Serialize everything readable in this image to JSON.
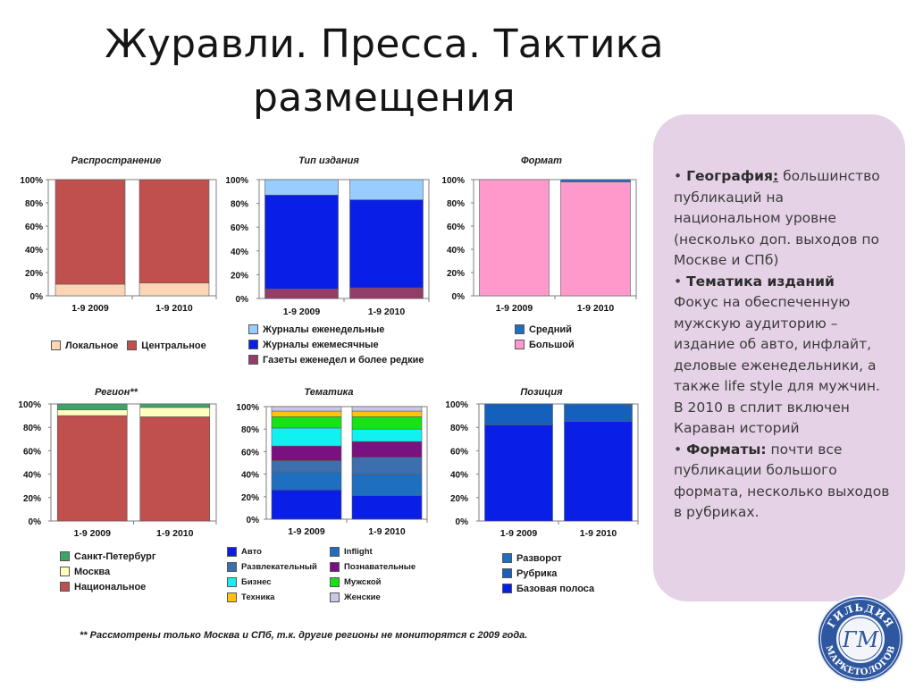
{
  "slide": {
    "title_lines": [
      "Журавли. Пресса. Тактика",
      "размещения"
    ],
    "footnote": "** Рассмотрены только Москва и СПб, т.к. другие регионы не мониторятся с 2009 года."
  },
  "side_panel": {
    "background": "#e5d2e6",
    "blocks": [
      {
        "bullet": "•",
        "heading": "География",
        "sep": ":",
        "text": " большинство публикаций на национальном уровне (несколько доп. выходов по Москве и СПб)"
      },
      {
        "bullet": "•",
        "heading": "Тематика изданий",
        "sep": "",
        "text": " Фокус на обеспеченную мужскую аудиторию – издание об авто, инфлайт, деловые еженедельники, а также life style для мужчин. В 2010 в сплит включен Караван историй"
      },
      {
        "bullet": "•",
        "heading": "Форматы",
        "sep": ":",
        "text": "  почти все публикации большого формата, несколько выходов в рубриках."
      }
    ]
  },
  "logo": {
    "icon": "guild-seal-logo",
    "text": "ГИЛЬДИЯ МАРКЕТОЛОГОВ",
    "letters": "ГМ"
  },
  "chart_data": [
    {
      "id": "rasprostranenie",
      "type": "bar",
      "stacked": "percent",
      "title": "Распространение",
      "categories": [
        "1-9 2009",
        "1-9 2010"
      ],
      "yticks": [
        "100%",
        "80%",
        "60%",
        "40%",
        "20%",
        "0%"
      ],
      "ylim": [
        0,
        100
      ],
      "series": [
        {
          "name": "Локальное",
          "color": "#fbd5b5",
          "values": [
            10,
            11
          ]
        },
        {
          "name": "Центральное",
          "color": "#c0504d",
          "values": [
            90,
            89
          ]
        }
      ],
      "legend_position": "bottom",
      "legend_order": [
        "Локальное",
        "Центральное"
      ]
    },
    {
      "id": "tip-izdaniya",
      "type": "bar",
      "stacked": "percent",
      "title": "Тип издания",
      "categories": [
        "1-9 2009",
        "1-9 2010"
      ],
      "yticks": [
        "100%",
        "80%",
        "60%",
        "40%",
        "20%",
        "0%"
      ],
      "ylim": [
        0,
        100
      ],
      "series": [
        {
          "name": "Газеты еженедел и более редкие",
          "color": "#943c6a",
          "values": [
            8,
            9
          ]
        },
        {
          "name": "Журналы ежемесячные",
          "color": "#0a1fe6",
          "values": [
            79,
            74
          ]
        },
        {
          "name": "Журналы еженедельные",
          "color": "#99ccff",
          "values": [
            13,
            17
          ]
        }
      ],
      "legend_position": "bottom",
      "legend_order": [
        "Журналы еженедельные",
        "Журналы ежемесячные",
        "Газеты еженедел и более редкие"
      ]
    },
    {
      "id": "format",
      "type": "bar",
      "stacked": "percent",
      "title": "Формат",
      "categories": [
        "1-9 2009",
        "1-9 2010"
      ],
      "yticks": [
        "100%",
        "80%",
        "60%",
        "40%",
        "20%",
        "0%"
      ],
      "ylim": [
        0,
        100
      ],
      "series": [
        {
          "name": "Большой",
          "color": "#ff99cc",
          "values": [
            100,
            98
          ]
        },
        {
          "name": "Средний",
          "color": "#1f6fc0",
          "values": [
            0,
            2
          ]
        }
      ],
      "legend_position": "bottom",
      "legend_order": [
        "Средний",
        "Большой"
      ]
    },
    {
      "id": "region",
      "type": "bar",
      "stacked": "percent",
      "title": "Регион**",
      "categories": [
        "1-9 2009",
        "1-9 2010"
      ],
      "yticks": [
        "100%",
        "80%",
        "60%",
        "40%",
        "20%",
        "0%"
      ],
      "ylim": [
        0,
        100
      ],
      "series": [
        {
          "name": "Национальное",
          "color": "#c0504d",
          "values": [
            90,
            89
          ]
        },
        {
          "name": "Москва",
          "color": "#ffffc0",
          "values": [
            5,
            8
          ]
        },
        {
          "name": "Санкт-Петербург",
          "color": "#3ea568",
          "values": [
            5,
            3
          ]
        }
      ],
      "legend_position": "bottom",
      "legend_order": [
        "Санкт-Петербург",
        "Москва",
        "Национальное"
      ]
    },
    {
      "id": "tematika",
      "type": "bar",
      "stacked": "percent",
      "title": "Тематика",
      "categories": [
        "1-9 2009",
        "1-9 2010"
      ],
      "yticks": [
        "100%",
        "80%",
        "60%",
        "40%",
        "20%",
        "0%"
      ],
      "ylim": [
        0,
        100
      ],
      "series": [
        {
          "name": "Авто",
          "color": "#0a1fe6",
          "values": [
            26,
            21
          ]
        },
        {
          "name": "Inflight",
          "color": "#1f6fc0",
          "values": [
            16,
            19
          ]
        },
        {
          "name": "Развлекательный",
          "color": "#3d6fae",
          "values": [
            10,
            15
          ]
        },
        {
          "name": "Познавательные",
          "color": "#7a1180",
          "values": [
            13,
            14
          ]
        },
        {
          "name": "Бизнес",
          "color": "#12f1f1",
          "values": [
            16,
            11
          ]
        },
        {
          "name": "Мужской",
          "color": "#16e216",
          "values": [
            10,
            11
          ]
        },
        {
          "name": "Техника",
          "color": "#ffc20e",
          "values": [
            5,
            5
          ]
        },
        {
          "name": "Женские",
          "color": "#c8c8e8",
          "values": [
            4,
            4
          ]
        }
      ],
      "legend_position": "bottom",
      "legend_order": [
        "Авто",
        "Inflight",
        "Развлекательный",
        "Познавательные",
        "Бизнес",
        "Мужской",
        "Техника",
        "Женские"
      ]
    },
    {
      "id": "poziciya",
      "type": "bar",
      "stacked": "percent",
      "title": "Позиция",
      "categories": [
        "1-9 2009",
        "1-9 2010"
      ],
      "yticks": [
        "100%",
        "80%",
        "60%",
        "40%",
        "20%",
        "0%"
      ],
      "ylim": [
        0,
        100
      ],
      "series": [
        {
          "name": "Базовая полоса",
          "color": "#0a1fe6",
          "values": [
            82,
            85
          ]
        },
        {
          "name": "Рубрика",
          "color": "#1560bd",
          "values": [
            18,
            14
          ]
        },
        {
          "name": "Разворот",
          "color": "#1f6fc0",
          "values": [
            0,
            1
          ]
        }
      ],
      "legend_position": "bottom",
      "legend_order": [
        "Разворот",
        "Рубрика",
        "Базовая полоса"
      ]
    }
  ]
}
